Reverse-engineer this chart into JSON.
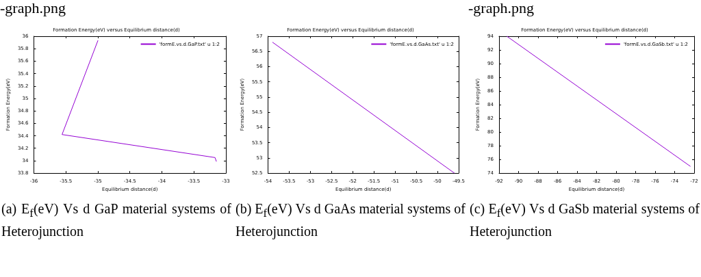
{
  "chart_data": [
    {
      "type": "line",
      "subtitle": "-graph.png",
      "title": "Formation Energy(eV) versus Equilibrium distance(d)",
      "xlabel": "Equilibrium distance(d)",
      "ylabel": "Formation Energy(eV)",
      "annotations": [
        "(a) E$_{f}$(eV) Vs d GaP material systems of Heterojunction"
      ],
      "series": [
        {
          "name": "'formE.vs.d.GaP.txt' u 1:2",
          "color": "#9400d3",
          "x": [
            -35.0,
            -35.56,
            -33.17,
            -33.15
          ],
          "values": [
            35.93,
            34.42,
            34.05,
            33.99
          ]
        }
      ],
      "xlim": [
        -36,
        -33
      ],
      "xticks": [
        -36,
        -35.5,
        -35,
        -34.5,
        -34,
        -33.5,
        -33
      ],
      "ylim": [
        33.8,
        36
      ],
      "yticks": [
        33.8,
        34,
        34.2,
        34.4,
        34.6,
        34.8,
        35,
        35.2,
        35.4,
        35.6,
        35.8,
        36
      ],
      "grid": false,
      "legend": "top right",
      "marker": "none",
      "line_style": "solid"
    },
    {
      "type": "line",
      "title": "Formation Energy(eV) versus Equilibrium distance(d)",
      "xlabel": "Equilibrium distance(d)",
      "ylabel": "Formation Energy(eV)",
      "annotations": [
        "(b) E$_{f}$(eV) Vs d GaAs material systems of Heterojunction"
      ],
      "series": [
        {
          "name": "'formE.vs.d.GaAs.txt' u 1:2",
          "color": "#9400d3",
          "x": [
            -53.89,
            -49.6
          ],
          "values": [
            56.8,
            52.5
          ]
        }
      ],
      "xlim": [
        -54,
        -49.5
      ],
      "xticks": [
        -54,
        -53.5,
        -53,
        -52.5,
        -52,
        -51.5,
        -51,
        -50.5,
        -50,
        -49.5
      ],
      "ylim": [
        52.5,
        57
      ],
      "yticks": [
        52.5,
        53,
        53.5,
        54,
        54.5,
        55,
        55.5,
        56,
        56.5,
        57
      ],
      "grid": false,
      "legend": "top right",
      "marker": "none",
      "line_style": "solid"
    },
    {
      "type": "line",
      "subtitle": "-graph.png",
      "title": "Formation Energy(eV) versus Equilibrium distance(d)",
      "xlabel": "Equilibrium distance(d)",
      "ylabel": "Formation Energy(eV)",
      "annotations": [
        "(c) E$_{f}$(eV) Vs d GaSb material systems of Heterojunction"
      ],
      "series": [
        {
          "name": "'formE.vs.d.GaSb.txt' u 1:2",
          "color": "#9400d3",
          "x": [
            -91.2,
            -72.4
          ],
          "values": [
            94,
            75
          ]
        }
      ],
      "xlim": [
        -92,
        -72
      ],
      "xticks": [
        -92,
        -90,
        -88,
        -86,
        -84,
        -82,
        -80,
        -78,
        -76,
        -74,
        -72
      ],
      "ylim": [
        74,
        94
      ],
      "yticks": [
        74,
        76,
        78,
        80,
        82,
        84,
        86,
        88,
        90,
        92,
        94
      ],
      "grid": false,
      "legend": "top right",
      "marker": "none",
      "line_style": "solid"
    }
  ]
}
